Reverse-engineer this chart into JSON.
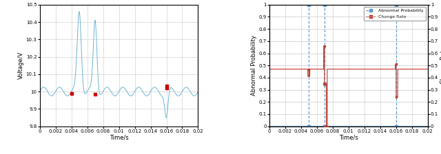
{
  "figsize": [
    6.4,
    2.24
  ],
  "dpi": 100,
  "left_plot": {
    "ylabel": "Voltage/V",
    "xlabel": "Time/s",
    "xlim": [
      0,
      0.02
    ],
    "ylim": [
      9.8,
      10.5
    ],
    "yticks": [
      9.8,
      9.9,
      10.0,
      10.1,
      10.2,
      10.3,
      10.4,
      10.5
    ],
    "xticks": [
      0,
      0.002,
      0.004,
      0.006,
      0.008,
      0.01,
      0.012,
      0.014,
      0.016,
      0.018,
      0.02
    ],
    "line_color": "#6EB4D4",
    "anomaly_color": "#CC0000"
  },
  "right_plot": {
    "ylabel_left": "Abnormal Probability",
    "ylabel_right": "Change Rate",
    "xlabel": "Time/s",
    "xlim": [
      0,
      0.02
    ],
    "ylim_left": [
      0,
      1
    ],
    "ylim_right": [
      0,
      1
    ],
    "yticks": [
      0,
      0.1,
      0.2,
      0.3,
      0.4,
      0.5,
      0.6,
      0.7,
      0.8,
      0.9,
      1.0
    ],
    "xticks": [
      0,
      0.002,
      0.004,
      0.006,
      0.008,
      0.01,
      0.012,
      0.014,
      0.016,
      0.018,
      0.02
    ],
    "prob_color": "#5B9BD5",
    "rate_color": "#C0392B",
    "legend_labels": [
      "Abnormal Probability",
      "Change Rate"
    ],
    "spike_times": [
      0.005,
      0.007,
      0.016
    ],
    "rate_baseline": 0.47,
    "rate_dip1": 0.41,
    "rate_spike2": 0.66,
    "rate_dip2": 0.35,
    "rate_dip2b": 0.0,
    "rate_spike3": 0.51,
    "rate_dip3": 0.24
  }
}
